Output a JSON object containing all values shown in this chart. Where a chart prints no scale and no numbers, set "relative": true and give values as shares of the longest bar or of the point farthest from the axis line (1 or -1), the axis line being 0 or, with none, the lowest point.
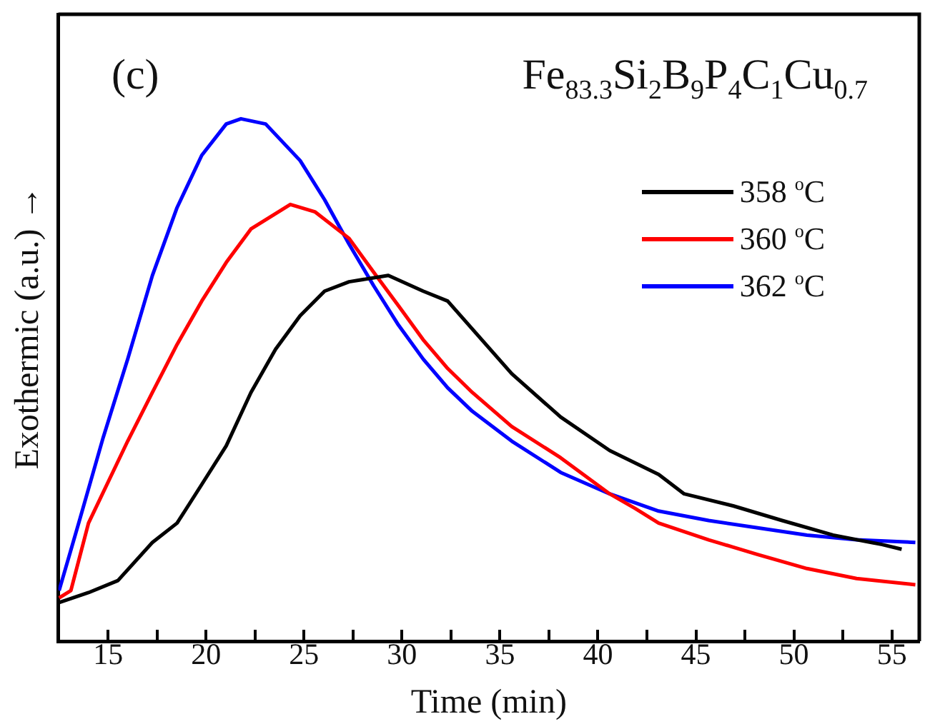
{
  "chart_data": {
    "type": "line",
    "title": "Fe$_{83.3}$Si$_{2}$B$_{9}$P$_{4}$C$_{1}$Cu$_{0.7}$",
    "annotations": [
      "(c)"
    ],
    "xlabel": "Time (min)",
    "ylabel": "Exothermic (a.u.) →",
    "relative": true,
    "grid": false,
    "legend": "top right",
    "marker": "none",
    "line_style": "solid",
    "xlim": [
      12.46,
      56.4
    ],
    "xticks": [
      15,
      {
        "value": 17.5,
        "label": null
      },
      20,
      {
        "value": 22.5,
        "label": null
      },
      25,
      {
        "value": 27.5,
        "label": null
      },
      30,
      {
        "value": 32.5,
        "label": null
      },
      35,
      {
        "value": 37.5,
        "label": null
      },
      40,
      {
        "value": 42.5,
        "label": null
      },
      45,
      {
        "value": 47.5,
        "label": null
      },
      50,
      {
        "value": 52.5,
        "label": null
      },
      55
    ],
    "series": [
      {
        "name": "358 $^{o}$C",
        "color": "#000000",
        "x": [
          12.5,
          14.0,
          15.5,
          17.26,
          18.52,
          19.78,
          21.03,
          22.29,
          23.55,
          24.8,
          26.05,
          27.3,
          29.3,
          31.08,
          32.33,
          35.6,
          38.1,
          40.6,
          43.1,
          44.4,
          46.9,
          49.4,
          52.0,
          54.5,
          55.5
        ],
        "values": [
          0.074,
          0.093,
          0.116,
          0.189,
          0.226,
          0.3,
          0.374,
          0.476,
          0.559,
          0.623,
          0.67,
          0.688,
          0.7,
          0.67,
          0.651,
          0.512,
          0.429,
          0.365,
          0.319,
          0.282,
          0.259,
          0.231,
          0.203,
          0.185,
          0.176
        ]
      },
      {
        "name": "360 $^{o}$C",
        "color": "#ff0000",
        "x": [
          12.5,
          13.1,
          14.0,
          16.0,
          17.26,
          18.52,
          19.78,
          21.03,
          22.29,
          24.3,
          25.55,
          27.3,
          28.56,
          29.82,
          31.08,
          32.33,
          33.59,
          35.6,
          38.1,
          40.6,
          41.9,
          43.1,
          45.65,
          48.15,
          50.67,
          53.2,
          56.2
        ],
        "values": [
          0.083,
          0.097,
          0.226,
          0.383,
          0.476,
          0.568,
          0.651,
          0.725,
          0.789,
          0.836,
          0.822,
          0.771,
          0.706,
          0.642,
          0.577,
          0.522,
          0.476,
          0.411,
          0.351,
          0.282,
          0.254,
          0.226,
          0.194,
          0.166,
          0.139,
          0.12,
          0.108
        ]
      },
      {
        "name": "362 $^{o}$C",
        "color": "#0000ff",
        "x": [
          12.5,
          13.5,
          14.75,
          16.0,
          17.26,
          18.52,
          19.78,
          21.03,
          21.78,
          23.04,
          24.8,
          26.05,
          27.3,
          28.56,
          29.82,
          31.08,
          32.33,
          33.59,
          35.6,
          38.1,
          40.6,
          43.1,
          45.65,
          48.15,
          50.67,
          53.2,
          56.2
        ],
        "values": [
          0.097,
          0.226,
          0.39,
          0.54,
          0.7,
          0.83,
          0.93,
          0.99,
          1.0,
          0.99,
          0.92,
          0.845,
          0.76,
          0.68,
          0.605,
          0.54,
          0.485,
          0.44,
          0.383,
          0.323,
          0.282,
          0.249,
          0.231,
          0.217,
          0.203,
          0.194,
          0.189
        ]
      }
    ]
  }
}
